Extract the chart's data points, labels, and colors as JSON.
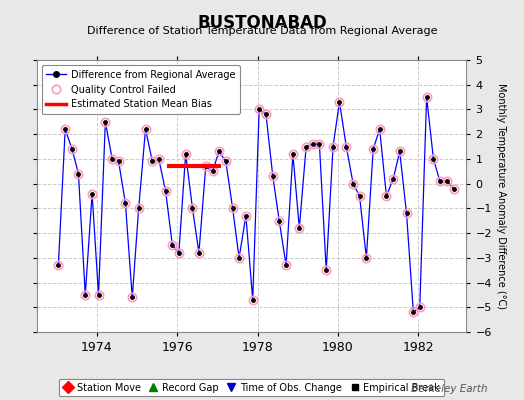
{
  "title": "BUSTONABAD",
  "subtitle": "Difference of Station Temperature Data from Regional Average",
  "ylabel_right": "Monthly Temperature Anomaly Difference (°C)",
  "xlim": [
    1972.5,
    1983.2
  ],
  "ylim": [
    -6,
    5
  ],
  "yticks": [
    -6,
    -5,
    -4,
    -3,
    -2,
    -1,
    0,
    1,
    2,
    3,
    4,
    5
  ],
  "xticks": [
    1974,
    1976,
    1978,
    1980,
    1982
  ],
  "background_color": "#e8e8e8",
  "plot_bg_color": "#ffffff",
  "line_color": "#0000ff",
  "marker_color": "#000000",
  "qc_edge_color": "#ff99bb",
  "bias_line_color": "#ff0000",
  "bias_x_start": 1975.75,
  "bias_x_end": 1977.1,
  "bias_y": 0.7,
  "watermark": "Berkeley Earth",
  "data_x": [
    1973.04,
    1973.21,
    1973.38,
    1973.54,
    1973.71,
    1973.88,
    1974.04,
    1974.21,
    1974.38,
    1974.54,
    1974.71,
    1974.88,
    1975.04,
    1975.21,
    1975.38,
    1975.54,
    1975.71,
    1975.88,
    1976.04,
    1976.21,
    1976.38,
    1976.54,
    1976.71,
    1976.88,
    1977.04,
    1977.21,
    1977.38,
    1977.54,
    1977.71,
    1977.88,
    1978.04,
    1978.21,
    1978.38,
    1978.54,
    1978.71,
    1978.88,
    1979.04,
    1979.21,
    1979.38,
    1979.54,
    1979.71,
    1979.88,
    1980.04,
    1980.21,
    1980.38,
    1980.54,
    1980.71,
    1980.88,
    1981.04,
    1981.21,
    1981.38,
    1981.54,
    1981.71,
    1981.88,
    1982.04,
    1982.21,
    1982.38,
    1982.54,
    1982.71,
    1982.88
  ],
  "data_y": [
    -3.3,
    2.2,
    1.4,
    0.4,
    -4.5,
    -0.4,
    -4.5,
    2.5,
    1.0,
    0.9,
    -0.8,
    -4.6,
    -1.0,
    2.2,
    0.9,
    1.0,
    -0.3,
    -2.5,
    -2.8,
    1.2,
    -1.0,
    -2.8,
    0.7,
    0.5,
    1.3,
    0.9,
    -1.0,
    -3.0,
    -1.3,
    -4.7,
    3.0,
    2.8,
    0.3,
    -1.5,
    -3.3,
    1.2,
    -1.8,
    1.5,
    1.6,
    1.6,
    -3.5,
    1.5,
    3.3,
    1.5,
    0.0,
    -0.5,
    -3.0,
    1.4,
    2.2,
    -0.5,
    0.2,
    1.3,
    -1.2,
    -5.2,
    -5.0,
    3.5,
    1.0,
    0.1,
    0.1,
    -0.2
  ],
  "qc_failed_indices": [
    0,
    1,
    2,
    3,
    4,
    5,
    6,
    7,
    8,
    9,
    10,
    11,
    12,
    13,
    14,
    15,
    16,
    17,
    18,
    19,
    20,
    21,
    22,
    23,
    24,
    25,
    26,
    27,
    28,
    29,
    30,
    31,
    32,
    33,
    34,
    35,
    36,
    37,
    38,
    39,
    40,
    41,
    42,
    43,
    44,
    45,
    46,
    47,
    48,
    49,
    50,
    51,
    52,
    53,
    54,
    55,
    56,
    57,
    58,
    59
  ]
}
